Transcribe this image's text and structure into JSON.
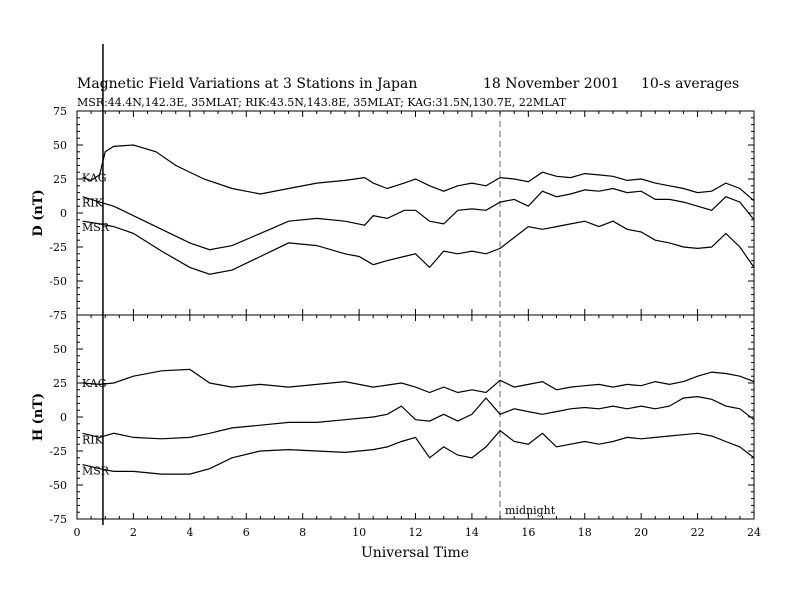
{
  "chart_data": {
    "type": "line",
    "title": "Magnetic Field Variations at 3 Stations in Japan",
    "date": "18 November 2001",
    "averaging": "10-s averages",
    "subtitle": "MSR:44.4N,142.3E, 35MLAT;  RIK:43.5N,143.8E, 35MLAT;  KAG:31.5N,130.7E, 22MLAT",
    "xlabel": "Universal Time",
    "xlim": [
      0,
      24
    ],
    "xticks": [
      "0",
      "2",
      "4",
      "6",
      "8",
      "10",
      "12",
      "14",
      "16",
      "18",
      "20",
      "22",
      "24"
    ],
    "grid": false,
    "annotation": {
      "text": "midnight",
      "x": 15
    },
    "panels": [
      {
        "ylabel": "D (nT)",
        "ylim": [
          -75,
          75
        ],
        "yticks": [
          "75",
          "50",
          "25",
          "0",
          "-25",
          "-50",
          "-75"
        ],
        "series": [
          {
            "name": "KAG",
            "x": [
              0.2,
              0.5,
              0.8,
              1.0,
              1.3,
              2.0,
              2.8,
              3.5,
              4.5,
              5.5,
              6.5,
              7.5,
              8.5,
              9.5,
              10.2,
              10.5,
              11.0,
              11.6,
              12.0,
              12.5,
              13.0,
              13.5,
              14.0,
              14.5,
              15.0,
              15.5,
              16.0,
              16.5,
              17.0,
              17.5,
              18.0,
              18.5,
              19.0,
              19.5,
              20.0,
              20.5,
              21.0,
              21.5,
              22.0,
              22.5,
              23.0,
              23.5,
              24.0
            ],
            "values": [
              26,
              24,
              28,
              45,
              49,
              50,
              45,
              35,
              25,
              18,
              14,
              18,
              22,
              24,
              26,
              22,
              18,
              22,
              25,
              20,
              16,
              20,
              22,
              20,
              26,
              25,
              23,
              30,
              27,
              26,
              29,
              28,
              27,
              24,
              25,
              22,
              20,
              18,
              15,
              16,
              22,
              18,
              9
            ]
          },
          {
            "name": "RIK",
            "x": [
              0.2,
              0.8,
              1.3,
              2.0,
              3.0,
              4.0,
              4.7,
              5.5,
              6.5,
              7.5,
              8.5,
              9.5,
              10.2,
              10.5,
              11.0,
              11.6,
              12.0,
              12.5,
              13.0,
              13.5,
              14.0,
              14.5,
              15.0,
              15.5,
              16.0,
              16.5,
              17.0,
              17.5,
              18.0,
              18.5,
              19.0,
              19.5,
              20.0,
              20.5,
              21.0,
              21.5,
              22.0,
              22.5,
              23.0,
              23.5,
              24.0
            ],
            "values": [
              12,
              8,
              5,
              -2,
              -12,
              -22,
              -27,
              -24,
              -15,
              -6,
              -4,
              -6,
              -9,
              -2,
              -4,
              2,
              2,
              -6,
              -8,
              2,
              3,
              2,
              8,
              10,
              5,
              16,
              12,
              14,
              17,
              16,
              18,
              15,
              16,
              10,
              10,
              8,
              5,
              2,
              12,
              8,
              -5
            ]
          },
          {
            "name": "MSR",
            "x": [
              0.2,
              0.8,
              1.3,
              2.0,
              3.0,
              4.0,
              4.7,
              5.5,
              6.5,
              7.5,
              8.5,
              9.5,
              10.0,
              10.5,
              11.0,
              11.6,
              12.0,
              12.5,
              13.0,
              13.5,
              14.0,
              14.5,
              15.0,
              15.5,
              16.0,
              16.5,
              17.0,
              17.5,
              18.0,
              18.5,
              19.0,
              19.5,
              20.0,
              20.5,
              21.0,
              21.5,
              22.0,
              22.5,
              23.0,
              23.5,
              24.0
            ],
            "values": [
              -6,
              -8,
              -10,
              -15,
              -28,
              -40,
              -45,
              -42,
              -32,
              -22,
              -24,
              -30,
              -32,
              -38,
              -35,
              -32,
              -30,
              -40,
              -28,
              -30,
              -28,
              -30,
              -26,
              -18,
              -10,
              -12,
              -10,
              -8,
              -6,
              -10,
              -6,
              -12,
              -14,
              -20,
              -22,
              -25,
              -26,
              -25,
              -15,
              -25,
              -40
            ]
          }
        ]
      },
      {
        "ylabel": "H (nT)",
        "ylim": [
          -75,
          75
        ],
        "yticks": [
          "75",
          "50",
          "25",
          "0",
          "-25",
          "-50",
          "-75"
        ],
        "series": [
          {
            "name": "KAG",
            "x": [
              0.2,
              0.8,
              1.3,
              2.0,
              3.0,
              4.0,
              4.7,
              5.5,
              6.5,
              7.5,
              8.5,
              9.5,
              10.5,
              11.5,
              12.0,
              12.5,
              13.0,
              13.5,
              14.0,
              14.5,
              15.0,
              15.5,
              16.0,
              16.5,
              17.0,
              17.5,
              18.0,
              18.5,
              19.0,
              19.5,
              20.0,
              20.5,
              21.0,
              21.5,
              22.0,
              22.5,
              23.0,
              23.5,
              24.0
            ],
            "values": [
              25,
              24,
              25,
              30,
              34,
              35,
              25,
              22,
              24,
              22,
              24,
              26,
              22,
              25,
              22,
              18,
              22,
              18,
              20,
              18,
              27,
              22,
              24,
              26,
              20,
              22,
              23,
              24,
              22,
              24,
              23,
              26,
              24,
              26,
              30,
              33,
              32,
              30,
              26
            ]
          },
          {
            "name": "RIK",
            "x": [
              0.2,
              0.8,
              1.3,
              2.0,
              3.0,
              4.0,
              4.7,
              5.5,
              6.5,
              7.5,
              8.5,
              9.5,
              10.5,
              11.0,
              11.5,
              12.0,
              12.5,
              13.0,
              13.5,
              14.0,
              14.5,
              15.0,
              15.5,
              16.0,
              16.5,
              17.0,
              17.5,
              18.0,
              18.5,
              19.0,
              19.5,
              20.0,
              20.5,
              21.0,
              21.5,
              22.0,
              22.5,
              23.0,
              23.5,
              24.0
            ],
            "values": [
              -12,
              -15,
              -12,
              -15,
              -16,
              -15,
              -12,
              -8,
              -6,
              -4,
              -4,
              -2,
              0,
              2,
              8,
              -2,
              -3,
              2,
              -3,
              2,
              14,
              2,
              6,
              4,
              2,
              4,
              6,
              7,
              6,
              8,
              6,
              8,
              6,
              8,
              14,
              15,
              13,
              8,
              6,
              -2
            ]
          },
          {
            "name": "MSR",
            "x": [
              0.2,
              0.8,
              1.3,
              2.0,
              3.0,
              4.0,
              4.7,
              5.5,
              6.5,
              7.5,
              8.5,
              9.5,
              10.5,
              11.0,
              11.5,
              12.0,
              12.5,
              13.0,
              13.5,
              14.0,
              14.5,
              15.0,
              15.5,
              16.0,
              16.5,
              17.0,
              17.5,
              18.0,
              18.5,
              19.0,
              19.5,
              20.0,
              20.5,
              21.0,
              21.5,
              22.0,
              22.5,
              23.0,
              23.5,
              24.0
            ],
            "values": [
              -35,
              -38,
              -40,
              -40,
              -42,
              -42,
              -38,
              -30,
              -25,
              -24,
              -25,
              -26,
              -24,
              -22,
              -18,
              -15,
              -30,
              -22,
              -28,
              -30,
              -22,
              -10,
              -18,
              -20,
              -12,
              -22,
              -20,
              -18,
              -20,
              -18,
              -15,
              -16,
              -15,
              -14,
              -13,
              -12,
              -14,
              -18,
              -22,
              -30
            ]
          }
        ]
      }
    ]
  }
}
